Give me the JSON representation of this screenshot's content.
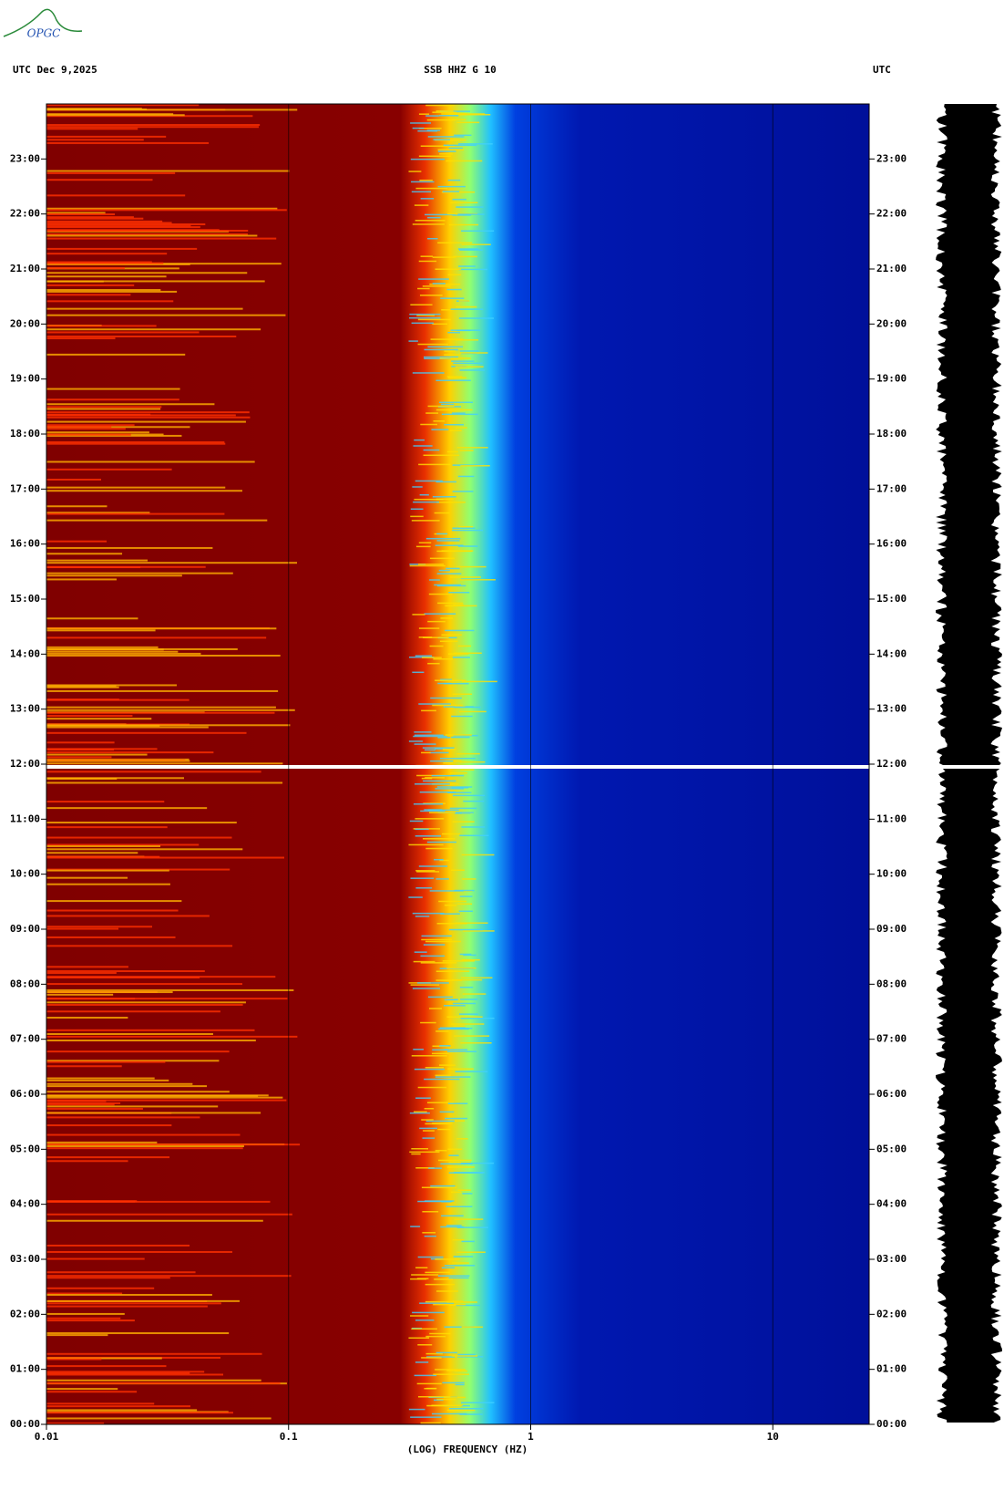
{
  "logo": "OPGC",
  "chart_data": {
    "type": "spectrogram",
    "header_left": "UTC  Dec 9,2025",
    "title": "SSB HHZ G 10",
    "header_right": "UTC",
    "x_label": "(LOG) FREQUENCY (HZ)",
    "x_log": true,
    "xlim": [
      0.01,
      25
    ],
    "xticks": [
      {
        "value": 0.01,
        "label": "0.01"
      },
      {
        "value": 0.1,
        "label": "0.1"
      },
      1,
      10
    ],
    "ylim": [
      0,
      24
    ],
    "yticks": [
      {
        "value": 0,
        "label": "00:00"
      },
      {
        "value": 1,
        "label": "01:00"
      },
      {
        "value": 2,
        "label": "02:00"
      },
      {
        "value": 3,
        "label": "03:00"
      },
      {
        "value": 4,
        "label": "04:00"
      },
      {
        "value": 5,
        "label": "05:00"
      },
      {
        "value": 6,
        "label": "06:00"
      },
      {
        "value": 7,
        "label": "07:00"
      },
      {
        "value": 8,
        "label": "08:00"
      },
      {
        "value": 9,
        "label": "09:00"
      },
      {
        "value": 10,
        "label": "10:00"
      },
      {
        "value": 11,
        "label": "11:00"
      },
      {
        "value": 12,
        "label": "12:00"
      },
      {
        "value": 13,
        "label": "13:00"
      },
      {
        "value": 14,
        "label": "14:00"
      },
      {
        "value": 15,
        "label": "15:00"
      },
      {
        "value": 16,
        "label": "16:00"
      },
      {
        "value": 17,
        "label": "17:00"
      },
      {
        "value": 18,
        "label": "18:00"
      },
      {
        "value": 19,
        "label": "19:00"
      },
      {
        "value": 20,
        "label": "20:00"
      },
      {
        "value": 21,
        "label": "21:00"
      },
      {
        "value": 22,
        "label": "22:00"
      },
      {
        "value": 23,
        "label": "23:00"
      }
    ]
  }
}
